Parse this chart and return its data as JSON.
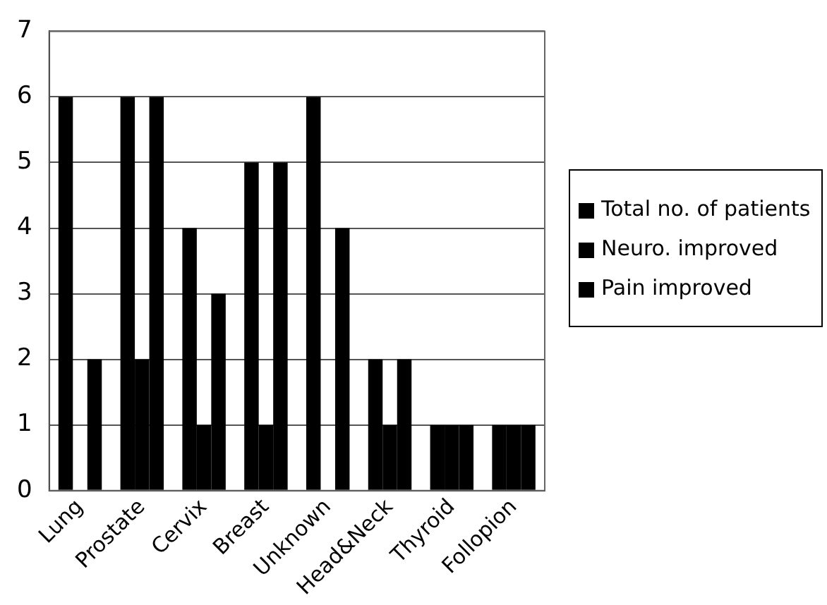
{
  "chart_data": {
    "type": "bar",
    "categories": [
      "Lung",
      "Prostate",
      "Cervix",
      "Breast",
      "Unknown",
      "Head&Neck",
      "Thyroid",
      "Follopion"
    ],
    "series": [
      {
        "name": "Total no. of patients",
        "color": "#000000",
        "values": [
          6,
          6,
          4,
          5,
          6,
          2,
          1,
          1
        ]
      },
      {
        "name": "Neuro. improved",
        "color": "#000000",
        "values": [
          0,
          2,
          1,
          1,
          0,
          1,
          1,
          1
        ]
      },
      {
        "name": "Pain improved",
        "color": "#000000",
        "values": [
          2,
          6,
          3,
          5,
          4,
          2,
          1,
          1
        ]
      }
    ],
    "ylim": [
      0,
      7
    ],
    "yticks": [
      0,
      1,
      2,
      3,
      4,
      5,
      6,
      7
    ],
    "grid": "y",
    "legend": "right"
  }
}
